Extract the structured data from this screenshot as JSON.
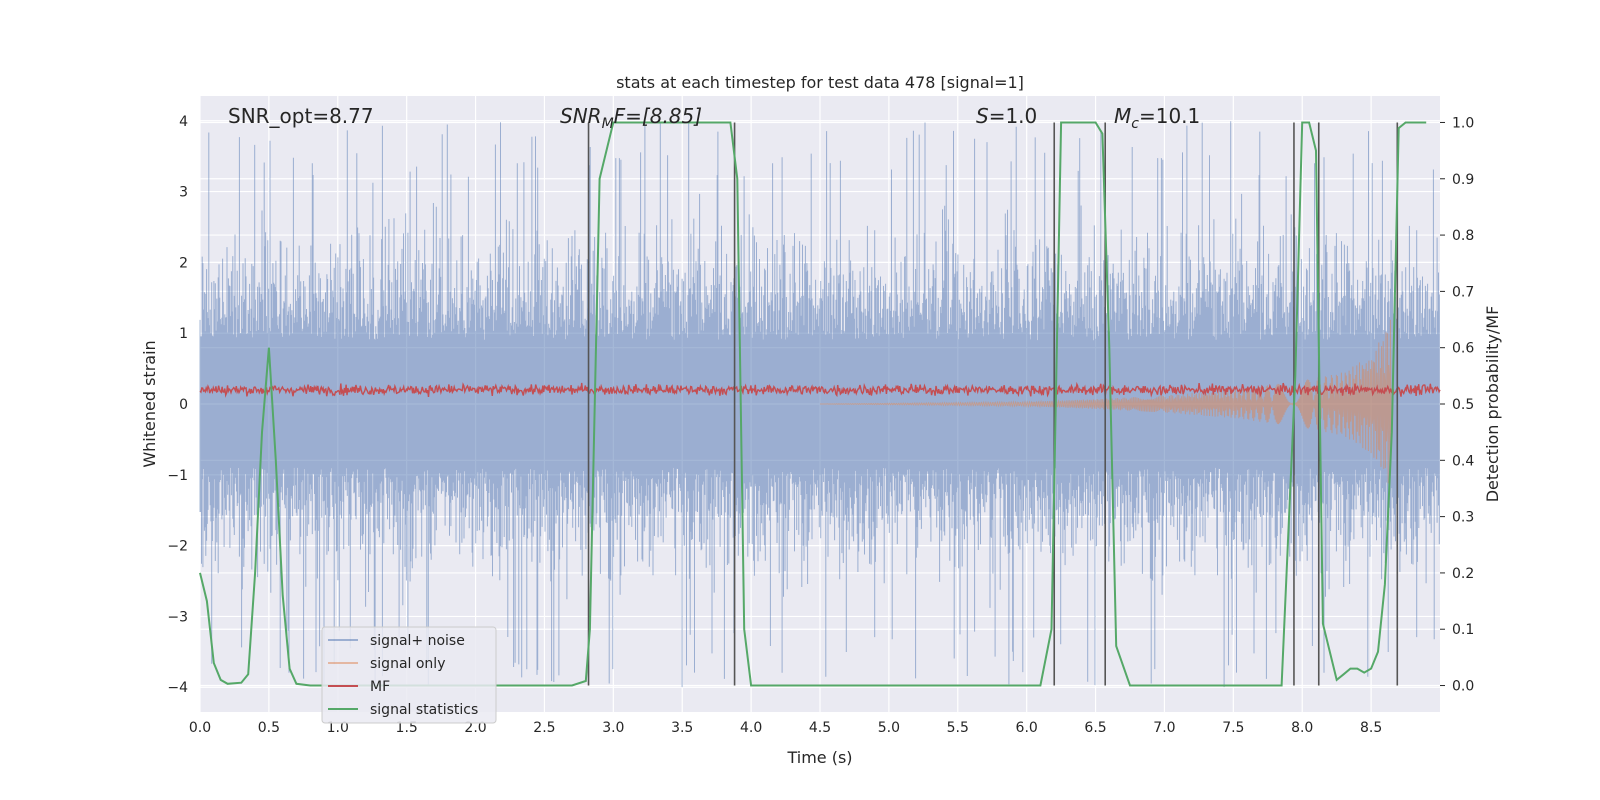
{
  "colors": {
    "background": "#eaeaf2",
    "grid": "#ffffff",
    "signal_noise": "#4c72b0",
    "signal_only": "#dd8452",
    "mf": "#c44e52",
    "signal_statistics": "#55a868",
    "vline": "#555555"
  },
  "chart_data": {
    "type": "line",
    "title": "stats at each timestep for test data 478 [signal=1]",
    "xlabel": "Time (s)",
    "ylabel_left": "Whitened strain",
    "ylabel_right": "Detection probability/MF",
    "xlim": [
      0,
      9
    ],
    "ylim_left": [
      -4.35,
      4.35
    ],
    "ylim_right": [
      -0.047,
      1.047
    ],
    "grid": true,
    "legend_position": "lower-left",
    "xticks": [
      "0.0",
      "0.5",
      "1.0",
      "1.5",
      "2.0",
      "2.5",
      "3.0",
      "3.5",
      "4.0",
      "4.5",
      "5.0",
      "5.5",
      "6.0",
      "6.5",
      "7.0",
      "7.5",
      "8.0",
      "8.5"
    ],
    "yticks_left": [
      "−4",
      "−3",
      "−2",
      "−1",
      "0",
      "1",
      "2",
      "3",
      "4"
    ],
    "yticks_right": [
      "0.0",
      "0.1",
      "0.2",
      "0.3",
      "0.4",
      "0.5",
      "0.6",
      "0.7",
      "0.8",
      "0.9",
      "1.0"
    ],
    "annotations": {
      "snr_opt": "SNR_opt=8.77",
      "snr_mf_main": "SNR",
      "snr_mf_sub": "M",
      "snr_mf_rest": "F=[8.85]",
      "s_main": "S",
      "s_rest": "=1.0",
      "mc_main": "M",
      "mc_sub": "c",
      "mc_rest": "=10.1"
    },
    "series": [
      {
        "name": "signal+ noise",
        "envelope": {
          "typical_amplitude": 2.2,
          "max_amplitude": 4.0
        }
      },
      {
        "name": "signal only",
        "x": [
          6.0,
          6.5,
          7.0,
          7.5,
          8.0,
          8.3,
          8.5,
          8.6,
          8.65
        ],
        "amplitude": [
          0.03,
          0.07,
          0.12,
          0.2,
          0.33,
          0.45,
          0.7,
          1.0,
          1.35
        ]
      },
      {
        "name": "MF",
        "baseline": 0.2,
        "spread": 0.1
      },
      {
        "name": "signal statistics",
        "x": [
          0.0,
          0.05,
          0.1,
          0.15,
          0.2,
          0.3,
          0.35,
          0.4,
          0.45,
          0.5,
          0.55,
          0.6,
          0.65,
          0.7,
          0.8,
          1.0,
          2.7,
          2.8,
          2.83,
          2.9,
          3.0,
          3.5,
          3.85,
          3.9,
          3.95,
          4.0,
          4.5,
          5.0,
          6.1,
          6.18,
          6.25,
          6.5,
          6.55,
          6.6,
          6.65,
          6.75,
          7.0,
          7.5,
          7.85,
          7.95,
          8.0,
          8.05,
          8.1,
          8.15,
          8.25,
          8.3,
          8.35,
          8.4,
          8.45,
          8.5,
          8.55,
          8.6,
          8.65,
          8.7,
          8.75,
          8.8,
          8.9
        ],
        "values": [
          0.2,
          0.15,
          0.04,
          0.01,
          0.003,
          0.005,
          0.02,
          0.2,
          0.45,
          0.6,
          0.4,
          0.16,
          0.03,
          0.003,
          0.0,
          0.0,
          0.0,
          0.008,
          0.1,
          0.9,
          1.0,
          1.0,
          1.0,
          0.9,
          0.1,
          0.0,
          0.0,
          0.0,
          0.0,
          0.1,
          1.0,
          1.0,
          0.98,
          0.6,
          0.07,
          0.0,
          0.0,
          0.0,
          0.0,
          0.55,
          1.0,
          1.0,
          0.95,
          0.11,
          0.01,
          0.02,
          0.03,
          0.03,
          0.023,
          0.03,
          0.06,
          0.18,
          0.45,
          0.99,
          1.0,
          1.0,
          1.0
        ]
      }
    ],
    "vertical_lines_x": [
      2.82,
      3.88,
      6.2,
      6.57,
      7.94,
      8.12,
      8.69
    ]
  }
}
